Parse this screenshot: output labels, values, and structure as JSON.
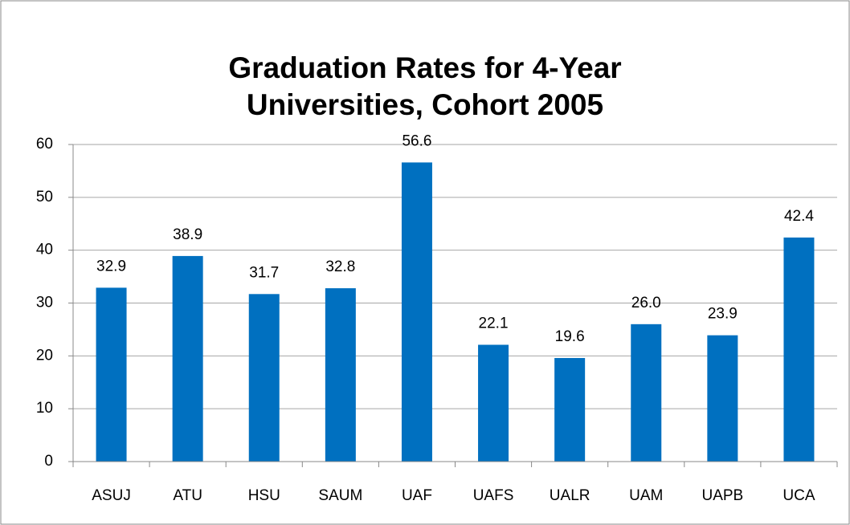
{
  "chart_data": {
    "type": "bar",
    "title": "Graduation Rates for 4-Year Universities, Cohort 2005",
    "categories": [
      "ASUJ",
      "ATU",
      "HSU",
      "SAUM",
      "UAF",
      "UAFS",
      "UALR",
      "UAM",
      "UAPB",
      "UCA"
    ],
    "values": [
      32.9,
      38.9,
      31.7,
      32.8,
      56.6,
      22.1,
      19.6,
      26.0,
      23.9,
      42.4
    ],
    "value_labels": [
      "32.9",
      "38.9",
      "31.7",
      "32.8",
      "56.6",
      "22.1",
      "19.6",
      "26.0",
      "23.9",
      "42.4"
    ],
    "color": "#0070c0",
    "ylim": [
      0,
      60
    ],
    "yticks": [
      0,
      10,
      20,
      30,
      40,
      50,
      60
    ],
    "grid": true
  }
}
